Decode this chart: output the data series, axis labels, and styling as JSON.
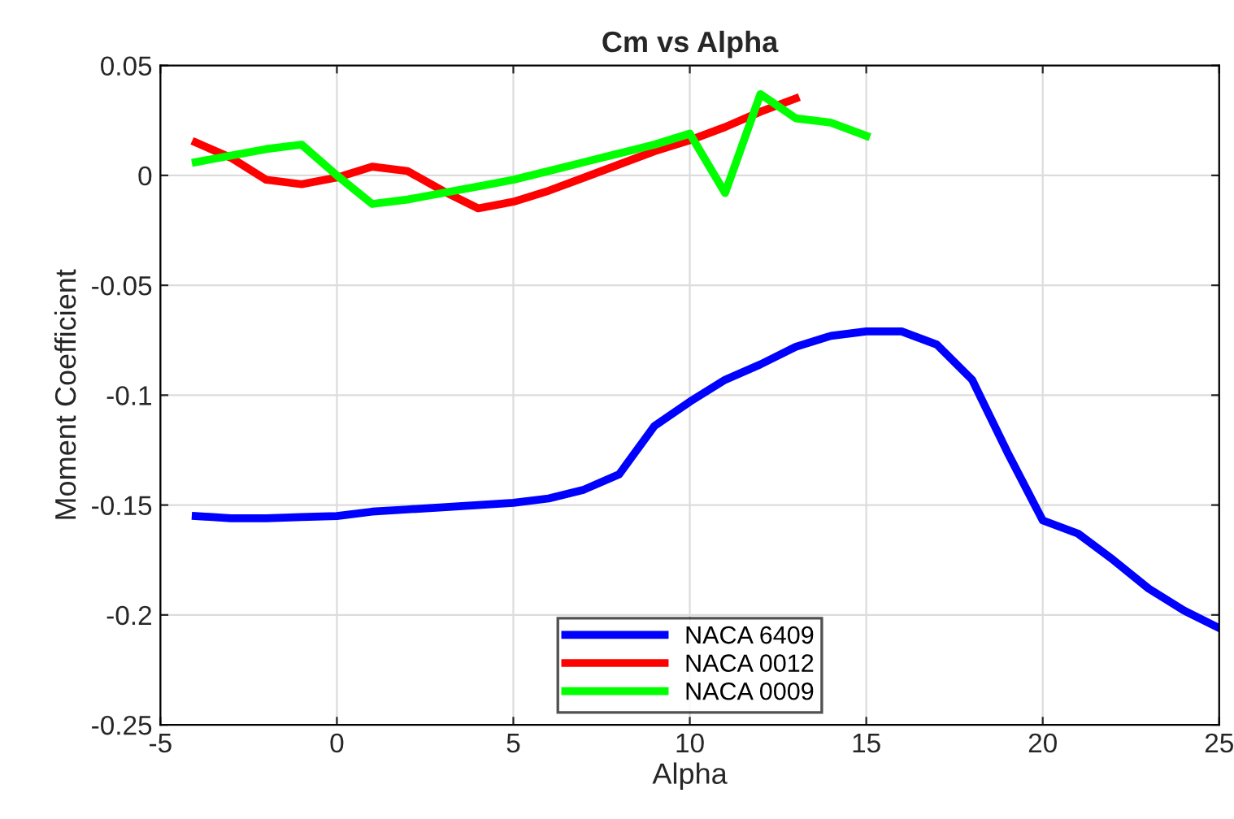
{
  "chart_data": {
    "type": "line",
    "title": "Cm vs Alpha",
    "xlabel": "Alpha",
    "ylabel": "Moment Coefficient",
    "xlim": [
      -5,
      25
    ],
    "xticks": [
      -5,
      0,
      5,
      10,
      15,
      20,
      25
    ],
    "ylim": [
      -0.25,
      0.05
    ],
    "yticks": [
      -0.25,
      -0.2,
      -0.15,
      -0.1,
      -0.05,
      0,
      0.05
    ],
    "grid": true,
    "legend": "bottom",
    "line_style": "solid",
    "marker": "none",
    "series": [
      {
        "name": "NACA 6409",
        "color": "#0000ff",
        "x": [
          -4,
          -3,
          -2,
          -1,
          0,
          1,
          2,
          3,
          4,
          5,
          6,
          7,
          8,
          9,
          10,
          11,
          12,
          13,
          14,
          15,
          16,
          17,
          18,
          19,
          20,
          21,
          22,
          23,
          24,
          25
        ],
        "values": [
          -0.155,
          -0.156,
          -0.156,
          -0.1555,
          -0.155,
          -0.153,
          -0.152,
          -0.151,
          -0.15,
          -0.149,
          -0.147,
          -0.143,
          -0.136,
          -0.114,
          -0.103,
          -0.093,
          -0.086,
          -0.078,
          -0.073,
          -0.071,
          -0.071,
          -0.077,
          -0.093,
          -0.126,
          -0.157,
          -0.163,
          -0.175,
          -0.188,
          -0.198,
          -0.206
        ]
      },
      {
        "name": "NACA 0012",
        "color": "#ff0000",
        "x": [
          -4,
          -3,
          -2,
          -1,
          0,
          1,
          2,
          3,
          4,
          5,
          6,
          7,
          8,
          9,
          10,
          11,
          12,
          13
        ],
        "values": [
          0.015,
          0.008,
          -0.002,
          -0.004,
          -0.001,
          0.004,
          0.002,
          -0.007,
          -0.015,
          -0.012,
          -0.007,
          -0.001,
          0.005,
          0.011,
          0.016,
          0.022,
          0.029,
          0.035
        ]
      },
      {
        "name": "NACA 0009",
        "color": "#00ff00",
        "x": [
          -4,
          -3,
          -2,
          -1,
          0,
          1,
          2,
          3,
          4,
          5,
          6,
          7,
          8,
          9,
          10,
          11,
          12,
          13,
          14,
          15
        ],
        "values": [
          0.006,
          0.009,
          0.012,
          0.014,
          0.0,
          -0.013,
          -0.011,
          -0.008,
          -0.005,
          -0.002,
          0.002,
          0.006,
          0.01,
          0.014,
          0.019,
          -0.008,
          0.037,
          0.026,
          0.024,
          0.018
        ]
      }
    ]
  }
}
